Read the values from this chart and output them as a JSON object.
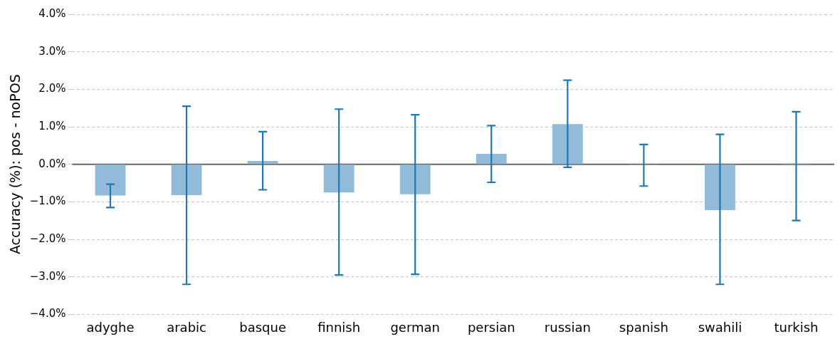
{
  "chart_data": {
    "type": "bar",
    "ylabel": "Accuracy (%): pos - noPOS",
    "categories": [
      "adyghe",
      "arabic",
      "basque",
      "finnish",
      "german",
      "persian",
      "russian",
      "spanish",
      "swahili",
      "turkish"
    ],
    "values": [
      -0.83,
      -0.82,
      0.09,
      -0.75,
      -0.8,
      0.28,
      1.07,
      -0.02,
      -1.22,
      -0.03
    ],
    "errors": [
      [
        -1.15,
        -0.53
      ],
      [
        -3.2,
        1.55
      ],
      [
        -0.68,
        0.87
      ],
      [
        -2.95,
        1.47
      ],
      [
        -2.93,
        1.32
      ],
      [
        -0.48,
        1.03
      ],
      [
        -0.08,
        2.24
      ],
      [
        -0.58,
        0.53
      ],
      [
        -3.2,
        0.8
      ],
      [
        -1.5,
        1.4
      ]
    ],
    "color": "#91bbd9",
    "ylim": [
      -4,
      4
    ],
    "yticks": [
      {
        "value": -4,
        "label": "−4.0%"
      },
      {
        "value": -3,
        "label": "−3.0%"
      },
      {
        "value": -2,
        "label": "−2.0%"
      },
      {
        "value": -1,
        "label": "−1.0%"
      },
      {
        "value": 0,
        "label": "0.0%"
      },
      {
        "value": 1,
        "label": "1.0%"
      },
      {
        "value": 2,
        "label": "2.0%"
      },
      {
        "value": 3,
        "label": "3.0%"
      },
      {
        "value": 4,
        "label": "4.0%"
      }
    ],
    "grid": "y",
    "legend": false,
    "ref_lines": [
      {
        "axis": "y",
        "value": 0,
        "color": "#666666"
      }
    ]
  }
}
